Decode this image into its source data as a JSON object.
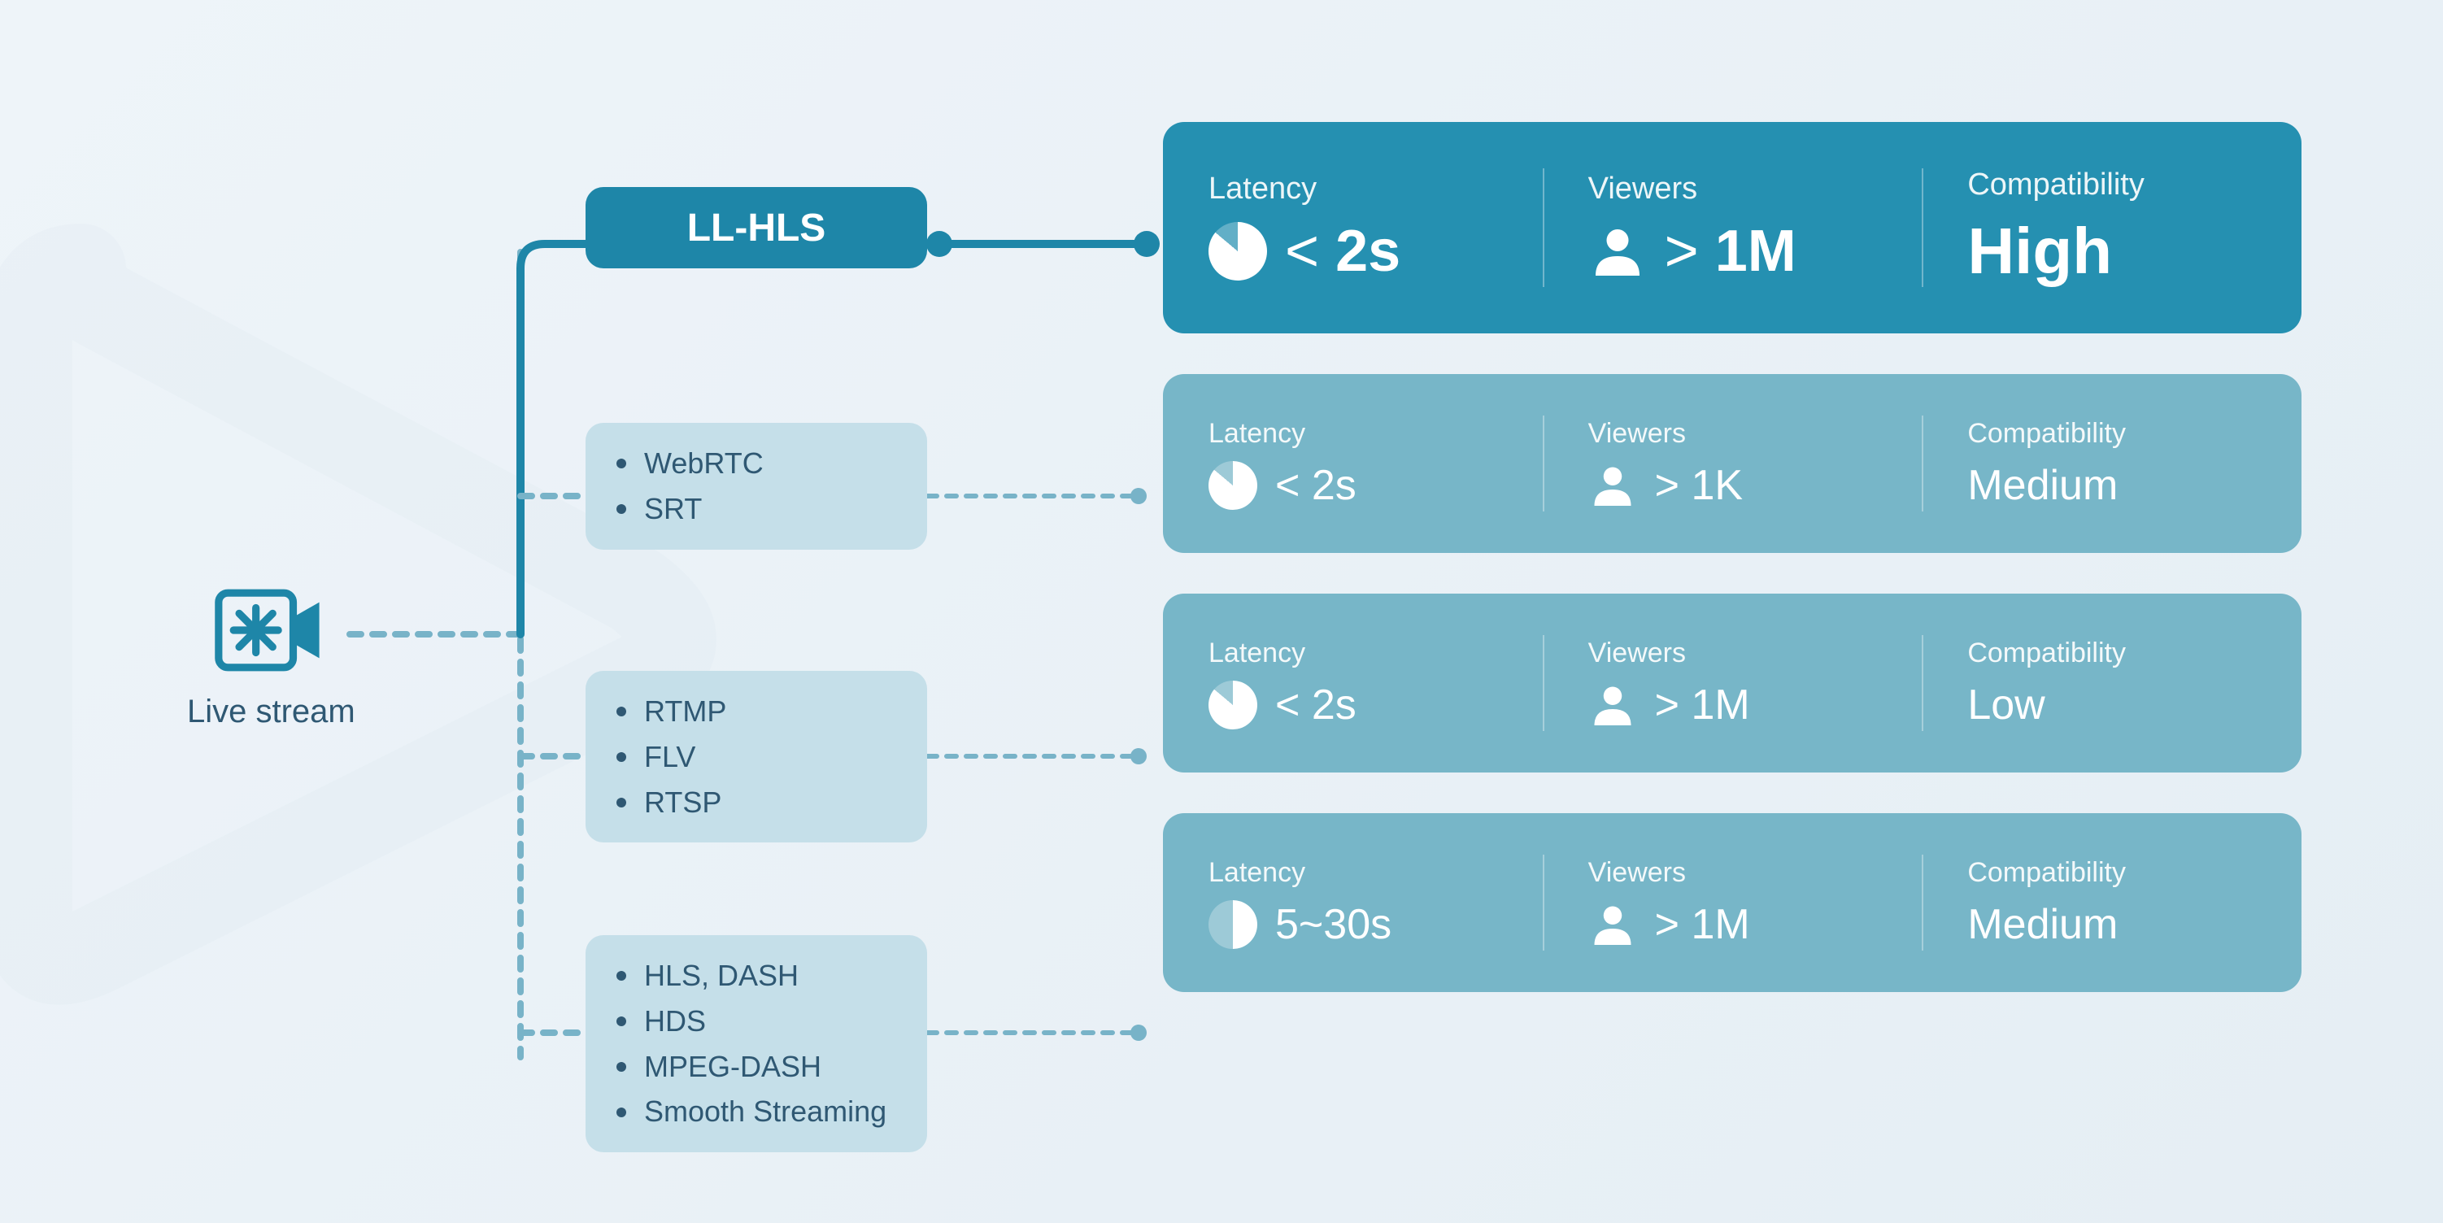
{
  "colors": {
    "page_bg_from": "#eef4f9",
    "page_bg_to": "#e5eef4",
    "featured_bg": "#1e86a8",
    "plain_bg": "#c5dfe9",
    "card_featured_bg": "#2590b1",
    "card_sub_bg": "#77b6c8",
    "text_dark": "#2f5873",
    "connector_solid": "#1e86a8",
    "connector_dashed": "#78b3c8"
  },
  "source": {
    "label": "Live stream",
    "icon": "camera-asterisk"
  },
  "featured": {
    "name": "LL-HLS",
    "latency": {
      "label": "Latency",
      "value": "2s",
      "prefix": "< ",
      "pie_fill_deg": 310
    },
    "viewers": {
      "label": "Viewers",
      "value": "1M",
      "prefix": "> "
    },
    "compat": {
      "label": "Compatibility",
      "value": "High"
    }
  },
  "groups": [
    {
      "protocols": [
        "WebRTC",
        "SRT"
      ],
      "latency": {
        "label": "Latency",
        "value": "2s",
        "prefix": "< ",
        "pie_fill_deg": 310
      },
      "viewers": {
        "label": "Viewers",
        "value": "1K",
        "prefix": "> "
      },
      "compat": {
        "label": "Compatibility",
        "value": "Medium"
      }
    },
    {
      "protocols": [
        "RTMP",
        "FLV",
        "RTSP"
      ],
      "latency": {
        "label": "Latency",
        "value": "2s",
        "prefix": "< ",
        "pie_fill_deg": 310
      },
      "viewers": {
        "label": "Viewers",
        "value": "1M",
        "prefix": "> "
      },
      "compat": {
        "label": "Compatibility",
        "value": "Low"
      }
    },
    {
      "protocols": [
        "HLS, DASH",
        "HDS",
        "MPEG-DASH",
        "Smooth Streaming"
      ],
      "latency": {
        "label": "Latency",
        "value": "5~30s",
        "prefix": "",
        "pie_fill_deg": 180
      },
      "viewers": {
        "label": "Viewers",
        "value": "1M",
        "prefix": "> "
      },
      "compat": {
        "label": "Compatibility",
        "value": "Medium"
      }
    }
  ],
  "layout": {
    "proto_y": {
      "featured": 230,
      "g0": 520,
      "g1": 830,
      "g2": 1170
    },
    "card_gap": 50
  }
}
